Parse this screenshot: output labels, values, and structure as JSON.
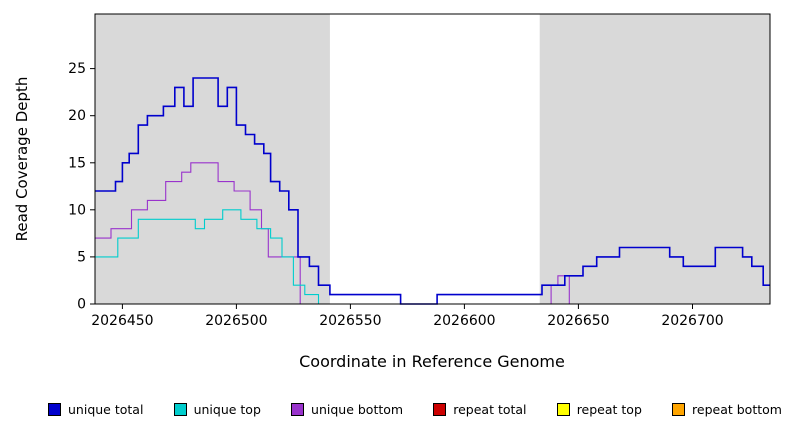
{
  "chart_data": {
    "type": "line",
    "subtype": "step",
    "title": "",
    "xlabel": "Coordinate in Reference Genome",
    "ylabel": "Read Coverage Depth",
    "xlim": [
      2026438,
      2026734
    ],
    "ylim": [
      0,
      30.8
    ],
    "xticks": [
      2026450,
      2026500,
      2026550,
      2026600,
      2026650,
      2026700
    ],
    "yticks": [
      0,
      5,
      10,
      15,
      20,
      25
    ],
    "grid": false,
    "legend_position": "bottom",
    "background_color": "#ffffff",
    "shaded_regions": [
      {
        "x0": 2026438,
        "x1": 2026541,
        "color": "#d9d9d9"
      },
      {
        "x0": 2026633,
        "x1": 2026734,
        "color": "#d9d9d9"
      }
    ],
    "series": [
      {
        "name": "unique total",
        "color": "#0000cd",
        "points": [
          [
            2026438,
            12
          ],
          [
            2026447,
            13
          ],
          [
            2026450,
            15
          ],
          [
            2026453,
            16
          ],
          [
            2026457,
            19
          ],
          [
            2026461,
            20
          ],
          [
            2026468,
            21
          ],
          [
            2026473,
            23
          ],
          [
            2026477,
            21
          ],
          [
            2026481,
            24
          ],
          [
            2026492,
            21
          ],
          [
            2026496,
            23
          ],
          [
            2026500,
            19
          ],
          [
            2026504,
            18
          ],
          [
            2026508,
            17
          ],
          [
            2026512,
            16
          ],
          [
            2026515,
            13
          ],
          [
            2026519,
            12
          ],
          [
            2026523,
            10
          ],
          [
            2026527,
            5
          ],
          [
            2026532,
            4
          ],
          [
            2026536,
            2
          ],
          [
            2026541,
            1
          ],
          [
            2026572,
            0
          ],
          [
            2026588,
            1
          ],
          [
            2026634,
            2
          ],
          [
            2026644,
            3
          ],
          [
            2026652,
            4
          ],
          [
            2026658,
            5
          ],
          [
            2026668,
            6
          ],
          [
            2026690,
            5
          ],
          [
            2026696,
            4
          ],
          [
            2026710,
            6
          ],
          [
            2026722,
            5
          ],
          [
            2026726,
            4
          ],
          [
            2026731,
            2
          ]
        ]
      },
      {
        "name": "unique top",
        "color": "#00cdcd",
        "points": [
          [
            2026438,
            5
          ],
          [
            2026448,
            7
          ],
          [
            2026457,
            9
          ],
          [
            2026482,
            8
          ],
          [
            2026486,
            9
          ],
          [
            2026494,
            10
          ],
          [
            2026502,
            9
          ],
          [
            2026509,
            8
          ],
          [
            2026515,
            7
          ],
          [
            2026520,
            5
          ],
          [
            2026525,
            2
          ],
          [
            2026530,
            1
          ],
          [
            2026536,
            0
          ]
        ]
      },
      {
        "name": "unique bottom",
        "color": "#9933cc",
        "points": [
          [
            2026438,
            7
          ],
          [
            2026445,
            8
          ],
          [
            2026454,
            10
          ],
          [
            2026461,
            11
          ],
          [
            2026469,
            13
          ],
          [
            2026476,
            14
          ],
          [
            2026480,
            15
          ],
          [
            2026492,
            13
          ],
          [
            2026499,
            12
          ],
          [
            2026506,
            10
          ],
          [
            2026511,
            8
          ],
          [
            2026514,
            5
          ],
          [
            2026528,
            0
          ],
          [
            2026638,
            2
          ],
          [
            2026641,
            3
          ],
          [
            2026646,
            0
          ]
        ]
      },
      {
        "name": "repeat total",
        "color": "#cc0000",
        "points": [
          [
            2026438,
            0
          ]
        ]
      },
      {
        "name": "repeat top",
        "color": "#ffff00",
        "points": [
          [
            2026438,
            0
          ]
        ]
      },
      {
        "name": "repeat bottom",
        "color": "#ffa500",
        "points": [
          [
            2026438,
            0
          ]
        ]
      }
    ],
    "legend": [
      {
        "label": "unique total",
        "color": "#0000cd"
      },
      {
        "label": "unique top",
        "color": "#00cdcd"
      },
      {
        "label": "unique bottom",
        "color": "#9933cc"
      },
      {
        "label": "repeat total",
        "color": "#cc0000"
      },
      {
        "label": "repeat top",
        "color": "#ffff00"
      },
      {
        "label": "repeat bottom",
        "color": "#ffa500"
      }
    ]
  }
}
